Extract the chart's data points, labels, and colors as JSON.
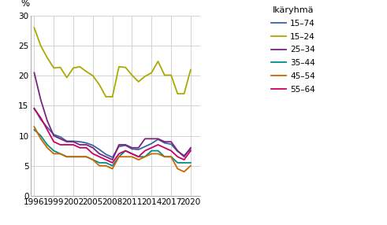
{
  "years": [
    1996,
    1997,
    1998,
    1999,
    2000,
    2001,
    2002,
    2003,
    2004,
    2005,
    2006,
    2007,
    2008,
    2009,
    2010,
    2011,
    2012,
    2013,
    2014,
    2015,
    2016,
    2017,
    2018,
    2019,
    2020
  ],
  "series": {
    "15–74": [
      14.6,
      12.7,
      11.4,
      10.2,
      9.8,
      9.1,
      9.1,
      9.0,
      8.8,
      8.4,
      7.7,
      6.9,
      6.4,
      8.2,
      8.4,
      7.8,
      7.7,
      8.2,
      8.7,
      9.4,
      8.8,
      8.6,
      7.4,
      6.7,
      7.8
    ],
    "15–24": [
      28.0,
      25.0,
      23.0,
      21.3,
      21.4,
      19.7,
      21.3,
      21.5,
      20.7,
      20.0,
      18.5,
      16.5,
      16.5,
      21.5,
      21.4,
      20.1,
      19.0,
      19.9,
      20.5,
      22.4,
      20.1,
      20.1,
      17.0,
      17.0,
      21.0
    ],
    "25–34": [
      20.5,
      16.0,
      12.5,
      10.0,
      9.5,
      9.0,
      9.0,
      8.5,
      8.5,
      8.0,
      7.0,
      6.5,
      6.0,
      8.5,
      8.5,
      8.0,
      8.0,
      9.5,
      9.5,
      9.5,
      9.0,
      9.0,
      7.5,
      6.5,
      8.0
    ],
    "35–44": [
      11.0,
      10.0,
      8.5,
      7.5,
      7.0,
      6.5,
      6.5,
      6.5,
      6.5,
      6.0,
      5.5,
      5.5,
      5.0,
      6.5,
      7.5,
      7.0,
      6.5,
      6.5,
      7.5,
      7.5,
      6.5,
      6.5,
      5.5,
      5.5,
      5.5
    ],
    "45–54": [
      11.5,
      9.5,
      8.0,
      7.0,
      7.0,
      6.5,
      6.5,
      6.5,
      6.5,
      6.0,
      5.0,
      5.0,
      4.5,
      6.5,
      6.5,
      6.5,
      6.0,
      6.5,
      7.0,
      7.0,
      6.5,
      6.5,
      4.5,
      4.0,
      5.0
    ],
    "55–64": [
      14.5,
      13.0,
      11.0,
      9.0,
      8.5,
      8.5,
      8.5,
      8.0,
      8.0,
      7.0,
      6.5,
      6.0,
      5.5,
      7.0,
      7.5,
      7.0,
      6.5,
      7.5,
      8.0,
      8.5,
      8.0,
      7.5,
      6.5,
      6.0,
      7.5
    ]
  },
  "colors": {
    "15–74": "#3a66a0",
    "15–24": "#aaaa00",
    "25–34": "#7B2282",
    "35–44": "#008B8B",
    "45–54": "#cc6600",
    "55–64": "#cc0066"
  },
  "ylabel": "%",
  "ylim": [
    0,
    30
  ],
  "yticks": [
    0,
    5,
    10,
    15,
    20,
    25,
    30
  ],
  "xticks": [
    1996,
    1999,
    2002,
    2005,
    2008,
    2011,
    2014,
    2017,
    2020
  ],
  "legend_title": "Ikäryhmä",
  "legend_order": [
    "15–74",
    "15–24",
    "25–34",
    "35–44",
    "45–54",
    "55–64"
  ],
  "background_color": "#ffffff",
  "grid_color": "#cccccc",
  "linewidth": 1.3
}
